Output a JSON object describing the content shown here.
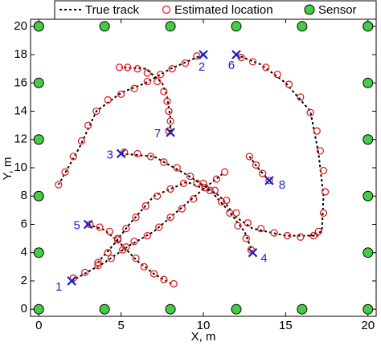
{
  "chart_data": {
    "type": "tracks",
    "xlabel": "X, m",
    "ylabel": "Y, m",
    "xlim": [
      -0.5,
      20.5
    ],
    "ylim": [
      -0.5,
      20.5
    ],
    "xticks": [
      0,
      5,
      10,
      15,
      20
    ],
    "yticks": [
      0,
      2,
      4,
      6,
      8,
      10,
      12,
      14,
      16,
      18,
      20
    ],
    "series": [
      {
        "name": "True track",
        "color": "#000000",
        "marker_color": "#1f1fcc",
        "tracks": [
          {
            "label": "1",
            "x": [
              2,
              4,
              5.5,
              7,
              8.5,
              10,
              11.2
            ],
            "y": [
              2,
              3.3,
              4.5,
              5.5,
              7,
              8.5,
              9.6
            ]
          },
          {
            "label": "2",
            "x": [
              10,
              8,
              6.5,
              5,
              3.5,
              2.5,
              1.2
            ],
            "y": [
              18,
              17,
              16,
              15.3,
              14,
              11.5,
              8.8
            ]
          },
          {
            "label": "3",
            "x": [
              5,
              7,
              9,
              11,
              12,
              13,
              15,
              17
            ],
            "y": [
              11,
              10.8,
              9.5,
              8,
              6.5,
              5.7,
              5.2,
              5.2
            ]
          },
          {
            "label": "4",
            "x": [
              13,
              12.5,
              11.5,
              10.5,
              9,
              7,
              5.5,
              4.5,
              3.5
            ],
            "y": [
              4,
              5.5,
              7,
              8.3,
              9,
              8,
              6,
              4.5,
              3.2
            ]
          },
          {
            "label": "5",
            "x": [
              3,
              4,
              5,
              6,
              7,
              8.2
            ],
            "y": [
              6,
              5.6,
              4.6,
              3.4,
              2.5,
              1.7
            ]
          },
          {
            "label": "6",
            "x": [
              12,
              13.5,
              15,
              16.5,
              17,
              17.3,
              17.2,
              16.5
            ],
            "y": [
              18,
              17.3,
              16,
              14,
              11,
              8,
              5.5,
              5.2
            ]
          },
          {
            "label": "7",
            "x": [
              8,
              8,
              7.8,
              7.5,
              6.5,
              5
            ],
            "y": [
              12.5,
              13.5,
              15,
              16,
              17,
              17.1
            ]
          },
          {
            "label": "8",
            "x": [
              14,
              13.3,
              12.8
            ],
            "y": [
              9.1,
              10,
              10.8
            ]
          }
        ]
      },
      {
        "name": "Estimated location",
        "color": "#e02020",
        "tracks": [
          {
            "x": [
              2.1,
              2.8,
              3.6,
              4.4,
              5.1,
              5.8,
              6.6,
              7.3,
              8.0,
              8.7,
              9.4,
              10.1,
              10.8,
              11.3
            ],
            "y": [
              2.2,
              2.6,
              3.1,
              3.6,
              4.2,
              4.8,
              5.2,
              5.8,
              6.5,
              7.1,
              7.8,
              8.6,
              9.2,
              9.7
            ]
          },
          {
            "x": [
              9.6,
              8.9,
              8.1,
              7.4,
              6.6,
              5.8,
              5.0,
              4.2,
              3.5,
              3.0,
              2.6,
              2.1,
              1.6,
              1.2
            ],
            "y": [
              17.9,
              17.4,
              17.0,
              16.6,
              16.1,
              15.6,
              15.2,
              14.8,
              14.0,
              13.0,
              11.9,
              10.8,
              9.7,
              8.8
            ]
          },
          {
            "x": [
              5.2,
              6.0,
              6.8,
              7.6,
              8.4,
              9.2,
              10.0,
              10.7,
              11.4,
              12.0,
              12.7,
              13.5,
              14.3,
              15.1,
              15.9,
              16.7
            ],
            "y": [
              11.1,
              11.0,
              10.8,
              10.4,
              10.0,
              9.4,
              8.9,
              8.4,
              7.7,
              6.8,
              6.1,
              5.7,
              5.4,
              5.2,
              5.1,
              5.2
            ]
          },
          {
            "x": [
              12.9,
              12.6,
              12.1,
              11.6,
              11.1,
              10.4,
              9.6,
              8.8,
              8.0,
              7.2,
              6.5,
              5.9,
              5.3,
              4.8,
              4.2,
              3.6
            ],
            "y": [
              4.2,
              5.0,
              5.9,
              6.8,
              7.6,
              8.4,
              8.9,
              8.9,
              8.5,
              8.0,
              7.3,
              6.5,
              5.7,
              4.9,
              4.0,
              3.3
            ]
          },
          {
            "x": [
              3.1,
              3.7,
              4.3,
              4.8,
              5.3,
              5.9,
              6.4,
              7.0,
              7.6,
              8.2
            ],
            "y": [
              6.0,
              5.8,
              5.5,
              5.0,
              4.4,
              3.6,
              3.0,
              2.5,
              2.1,
              1.8
            ]
          },
          {
            "x": [
              12.3,
              13.0,
              13.8,
              14.5,
              15.2,
              15.9,
              16.5,
              16.9,
              17.1,
              17.3,
              17.4,
              17.3,
              17.0
            ],
            "y": [
              17.8,
              17.5,
              17.1,
              16.6,
              15.9,
              15.0,
              13.9,
              12.6,
              11.2,
              9.8,
              8.3,
              6.8,
              5.5
            ]
          },
          {
            "x": [
              7.9,
              8.0,
              7.9,
              7.8,
              7.6,
              7.2,
              6.6,
              6.0,
              5.4,
              4.9
            ],
            "y": [
              12.6,
              13.3,
              14.0,
              14.7,
              15.4,
              16.1,
              16.7,
              17.0,
              17.1,
              17.1
            ]
          },
          {
            "x": [
              14.0,
              13.6,
              13.2,
              12.8
            ],
            "y": [
              9.1,
              9.6,
              10.2,
              10.8
            ]
          }
        ]
      },
      {
        "name": "Sensor",
        "color": "#44cc44",
        "x": [
          0,
          4,
          8,
          12,
          16,
          20,
          0,
          20,
          0,
          20,
          0,
          20,
          0,
          20,
          0,
          20,
          0,
          4,
          8,
          12,
          16,
          20
        ],
        "y": [
          0,
          0,
          0,
          0,
          0,
          0,
          4,
          4,
          8,
          8,
          12,
          12,
          16,
          16,
          20,
          20,
          20,
          20,
          20,
          20,
          20,
          20
        ]
      }
    ]
  }
}
